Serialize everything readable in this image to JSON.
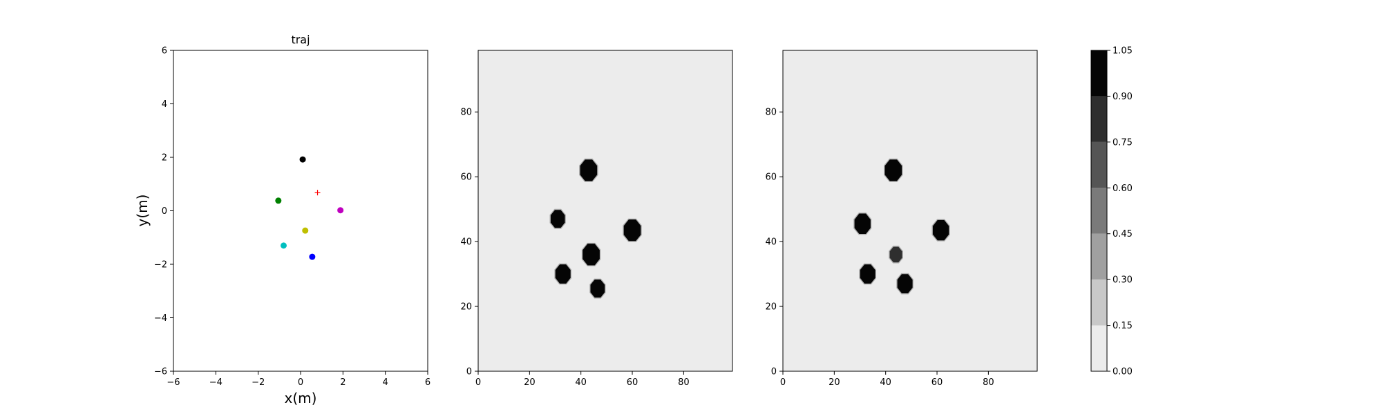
{
  "chart_data": [
    {
      "type": "scatter",
      "title": "traj",
      "xlabel": "x(m)",
      "ylabel": "y(m)",
      "xlim": [
        -6,
        6
      ],
      "ylim": [
        -6,
        6
      ],
      "xticks": [
        -6,
        -4,
        -2,
        0,
        2,
        4,
        6
      ],
      "yticks": [
        -6,
        -4,
        -2,
        0,
        2,
        4,
        6
      ],
      "grid": false,
      "points": [
        {
          "x": 0.1,
          "y": 1.92,
          "color": "#000000",
          "marker": "dot"
        },
        {
          "x": -1.05,
          "y": 0.38,
          "color": "#008000",
          "marker": "dot"
        },
        {
          "x": 1.88,
          "y": 0.02,
          "color": "#bf00bf",
          "marker": "dot"
        },
        {
          "x": 0.22,
          "y": -0.74,
          "color": "#bfbf00",
          "marker": "dot"
        },
        {
          "x": -0.8,
          "y": -1.3,
          "color": "#00bfbf",
          "marker": "dot"
        },
        {
          "x": 0.55,
          "y": -1.72,
          "color": "#0000ff",
          "marker": "dot"
        },
        {
          "x": 0.8,
          "y": 0.68,
          "color": "#ff0000",
          "marker": "plus"
        }
      ]
    },
    {
      "type": "heatmap",
      "title": "",
      "xlim": [
        0,
        99
      ],
      "ylim": [
        0,
        99
      ],
      "xticks": [
        0,
        20,
        40,
        60,
        80
      ],
      "yticks": [
        0,
        20,
        40,
        60,
        80
      ],
      "background_value": 0.05,
      "blobs": [
        {
          "x": 43,
          "y": 62,
          "radius": 3.6,
          "value": 1.0
        },
        {
          "x": 31,
          "y": 47,
          "radius": 3.0,
          "value": 1.0
        },
        {
          "x": 60,
          "y": 43.5,
          "radius": 3.6,
          "value": 1.0
        },
        {
          "x": 44,
          "y": 36,
          "radius": 3.6,
          "value": 1.0
        },
        {
          "x": 33,
          "y": 30,
          "radius": 3.2,
          "value": 1.0
        },
        {
          "x": 46.5,
          "y": 25.5,
          "radius": 3.0,
          "value": 1.0
        }
      ]
    },
    {
      "type": "heatmap",
      "title": "",
      "xlim": [
        0,
        99
      ],
      "ylim": [
        0,
        99
      ],
      "xticks": [
        0,
        20,
        40,
        60,
        80
      ],
      "yticks": [
        0,
        20,
        40,
        60,
        80
      ],
      "background_value": 0.05,
      "blobs": [
        {
          "x": 43,
          "y": 62,
          "radius": 3.6,
          "value": 1.0
        },
        {
          "x": 31,
          "y": 45.5,
          "radius": 3.4,
          "value": 1.0
        },
        {
          "x": 61.5,
          "y": 43.5,
          "radius": 3.4,
          "value": 1.0
        },
        {
          "x": 44,
          "y": 36,
          "radius": 2.6,
          "value": 0.75
        },
        {
          "x": 33,
          "y": 30,
          "radius": 3.2,
          "value": 1.0
        },
        {
          "x": 47.5,
          "y": 27,
          "radius": 3.2,
          "value": 1.0
        }
      ]
    }
  ],
  "colorbar": {
    "levels": [
      0.0,
      0.15,
      0.3,
      0.45,
      0.6,
      0.75,
      0.9,
      1.05
    ],
    "tick_labels": [
      "0.00",
      "0.15",
      "0.30",
      "0.45",
      "0.60",
      "0.75",
      "0.90",
      "1.05"
    ],
    "colors": [
      "#ececec",
      "#c8c8c8",
      "#a0a0a0",
      "#7a7a7a",
      "#555555",
      "#2e2e2e",
      "#050505"
    ]
  }
}
